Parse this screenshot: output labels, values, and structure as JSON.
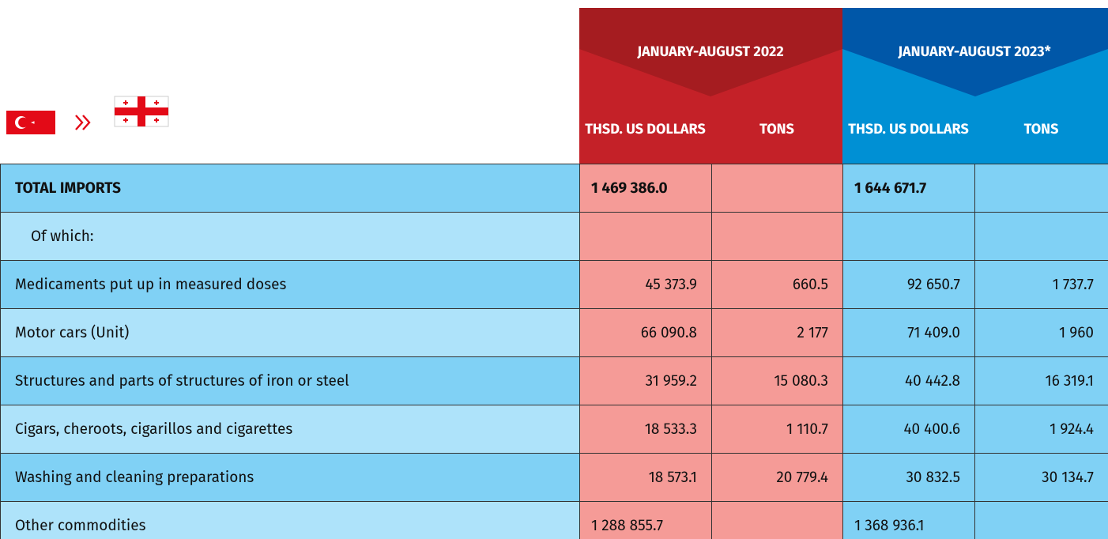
{
  "header": {
    "period_1": "JANUARY-AUGUST 2022",
    "period_2": "JANUARY-AUGUST 2023*",
    "col_value": "THSD. US DOLLARS",
    "col_tons": "TONS"
  },
  "table": {
    "rows": [
      [
        "TOTAL IMPORTS",
        "1 469 386.0",
        null,
        "1 644 671.7",
        null
      ],
      [
        "Of which:",
        null,
        null,
        null,
        null
      ],
      [
        "Medicaments put up in measured doses",
        "45 373.9",
        "660.5",
        "92 650.7",
        "1 737.7"
      ],
      [
        "Motor cars (Unit)",
        "66 090.8",
        "2 177",
        "71 409.0",
        "1 960"
      ],
      [
        "Structures and parts of structures of iron or steel",
        "31 959.2",
        "15 080.3",
        "40 442.8",
        "16 319.1"
      ],
      [
        "Cigars, cheroots, cigarillos and cigarettes",
        "18 533.3",
        "1 110.7",
        "40 400.6",
        "1 924.4"
      ],
      [
        "Washing and cleaning preparations",
        "18 573.1",
        "20 779.4",
        "30 832.5",
        "30 134.7"
      ],
      [
        "Other commodities",
        "1 288 855.7",
        null,
        "1 368 936.1",
        null
      ]
    ]
  }
}
